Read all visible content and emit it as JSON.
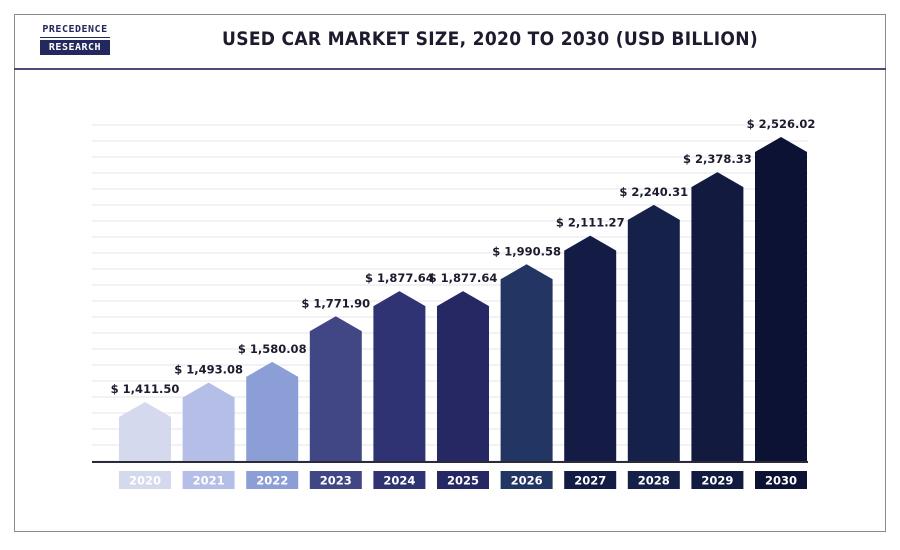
{
  "brand": {
    "line1": "PRECEDENCE",
    "line2": "RESEARCH"
  },
  "chart_data": {
    "type": "bar",
    "title": "USED CAR MARKET SIZE, 2020 TO 2030 (USD BILLION)",
    "categories": [
      "2020",
      "2021",
      "2022",
      "2023",
      "2024",
      "2025",
      "2026",
      "2027",
      "2028",
      "2029",
      "2030"
    ],
    "values": [
      1411.5,
      1493.08,
      1580.08,
      1771.9,
      1877.64,
      1877.64,
      1990.58,
      2111.27,
      2240.31,
      2378.33,
      2526.02
    ],
    "value_labels": [
      "$ 1,411.50",
      "$ 1,493.08",
      "$ 1,580.08",
      "$ 1,771.90",
      "$ 1,877.64",
      "$ 1,877.64",
      "$ 1,990.58",
      "$ 2,111.27",
      "$ 2,240.31",
      "$ 2,378.33",
      "$ 2,526.02"
    ],
    "colors": [
      "#d5d9ee",
      "#b4bee6",
      "#8c9ed6",
      "#404784",
      "#2f3373",
      "#252863",
      "#233563",
      "#141c45",
      "#16214a",
      "#131a40",
      "#0c1233"
    ],
    "grid": true,
    "legend": "none"
  }
}
